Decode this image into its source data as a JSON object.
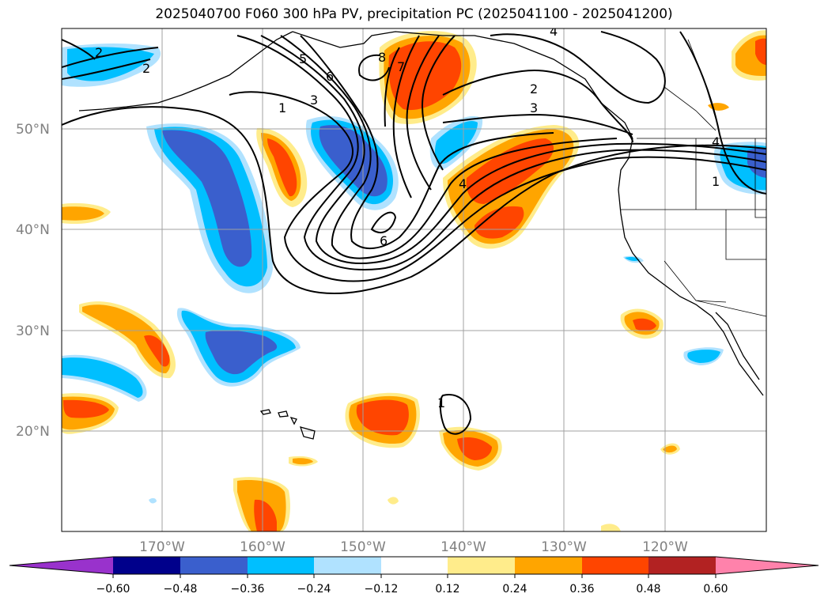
{
  "title": "2025040700 F060 300 hPa PV, precipitation PC (2025041100 - 2025041200)",
  "latitude_labels": [
    "50°N",
    "40°N",
    "30°N",
    "20°N"
  ],
  "longitude_labels": [
    "170°W",
    "160°W",
    "150°W",
    "140°W",
    "130°W",
    "120°W"
  ],
  "pv_contour_labels": [
    "2",
    "3",
    "5",
    "6",
    "1",
    "3",
    "8",
    "7",
    "2",
    "3",
    "4",
    "1",
    "6",
    "4",
    "4",
    "1"
  ],
  "colorbar": {
    "ticks": [
      "−0.60",
      "−0.48",
      "−0.36",
      "−0.24",
      "−0.12",
      "0.12",
      "0.24",
      "0.36",
      "0.48",
      "0.60"
    ],
    "colors": [
      "#9932cc",
      "#00008b",
      "#3a5fcd",
      "#00bfff",
      "#b0e2ff",
      "#ffffff",
      "#ffec8b",
      "#ffa500",
      "#ff4500",
      "#b22222",
      "#ff82ab"
    ]
  },
  "colors": {
    "neg_strong": "#3a5fcd",
    "neg_mid": "#00bfff",
    "neg_weak": "#b0e2ff",
    "pos_weak": "#ffec8b",
    "pos_mid": "#ffa500",
    "pos_strong": "#ff4500",
    "pos_vstrong": "#b22222"
  }
}
